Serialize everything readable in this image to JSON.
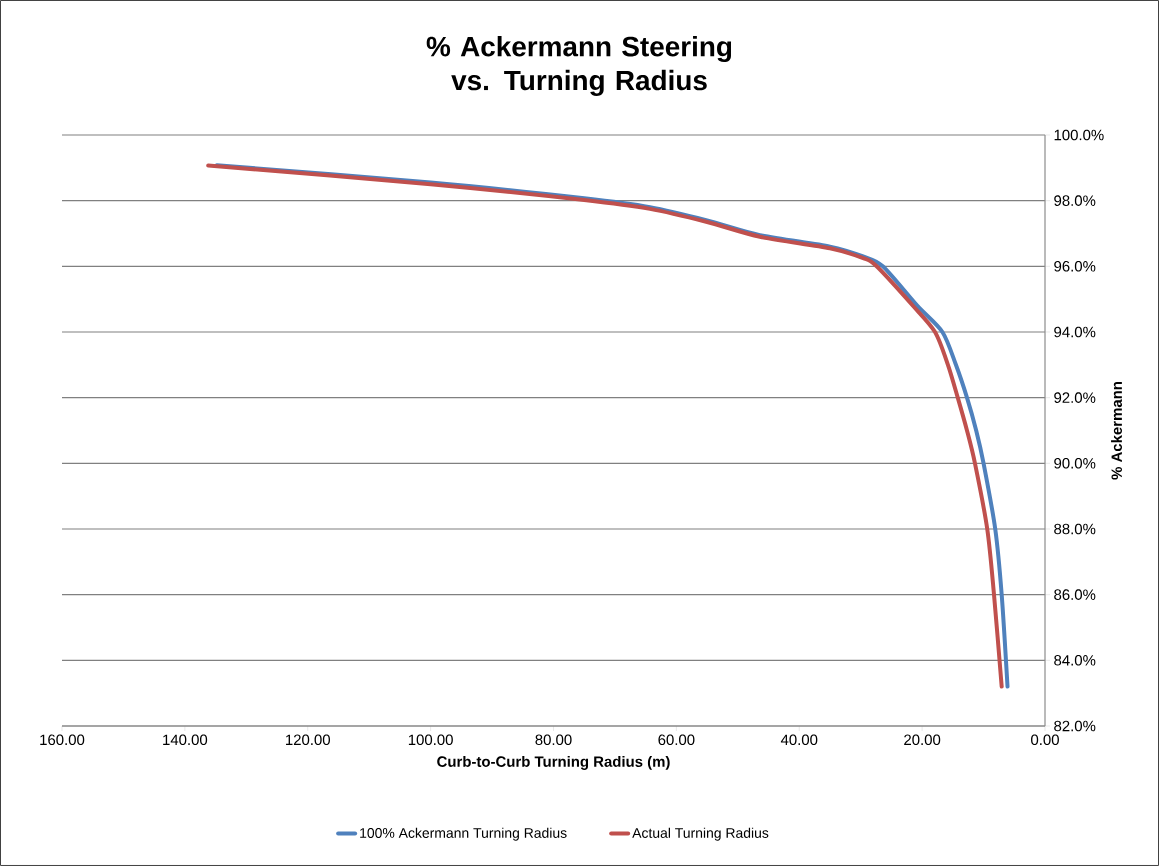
{
  "chart_data": {
    "type": "line",
    "title": "% Ackermann Steering vs. Turning Radius",
    "xlabel": "Curb-to-Curb Turning Radius (m)",
    "ylabel": "% Ackermann",
    "xlim": [
      160,
      0
    ],
    "xticks": [
      {
        "value": 160,
        "label": "160.00"
      },
      {
        "value": 140,
        "label": "140.00"
      },
      {
        "value": 120,
        "label": "120.00"
      },
      {
        "value": 100,
        "label": "100.00"
      },
      {
        "value": 80,
        "label": "80.00"
      },
      {
        "value": 60,
        "label": "60.00"
      },
      {
        "value": 40,
        "label": "40.00"
      },
      {
        "value": 20,
        "label": "20.00"
      },
      {
        "value": 0,
        "label": "0.00"
      }
    ],
    "ylim": [
      82,
      100
    ],
    "yticks": [
      {
        "value": 82,
        "label": "82.0%"
      },
      {
        "value": 84,
        "label": "84.0%"
      },
      {
        "value": 86,
        "label": "86.0%"
      },
      {
        "value": 88,
        "label": "88.0%"
      },
      {
        "value": 90,
        "label": "90.0%"
      },
      {
        "value": 92,
        "label": "92.0%"
      },
      {
        "value": 94,
        "label": "94.0%"
      },
      {
        "value": 96,
        "label": "96.0%"
      },
      {
        "value": 98,
        "label": "98.0%"
      },
      {
        "value": 100,
        "label": "100.0%"
      }
    ],
    "grid": "y",
    "legend": "bottom",
    "marker": "none",
    "line_style": "solid",
    "series": [
      {
        "name": "100% Ackermann Turning Radius",
        "color": "#4f81bd",
        "x": [
          134.8,
          100,
          75,
          64.3,
          55,
          46.4,
          35,
          29.6,
          26.4,
          20.8,
          16.7,
          14.5,
          12.7,
          11.2,
          10.0,
          8.1,
          7.05,
          6.1
        ],
        "values": [
          99.08,
          98.55,
          98.07,
          97.8,
          97.4,
          96.95,
          96.6,
          96.3,
          96.0,
          94.8,
          94.0,
          93.0,
          92.0,
          91.0,
          90.0,
          88.0,
          86.0,
          83.2
        ]
      },
      {
        "name": "Actual Turning Radius",
        "color": "#c0504d",
        "x": [
          136.2,
          100,
          75,
          64.3,
          55,
          46.4,
          35,
          29.6,
          27.4,
          21.5,
          17.9,
          15.8,
          14.2,
          12.7,
          11.4,
          9.4,
          8.3,
          7.05
        ],
        "values": [
          99.07,
          98.5,
          98.02,
          97.75,
          97.35,
          96.9,
          96.55,
          96.25,
          96.0,
          94.8,
          94.0,
          93.0,
          92.0,
          91.0,
          90.0,
          88.0,
          86.0,
          83.2
        ]
      }
    ]
  }
}
